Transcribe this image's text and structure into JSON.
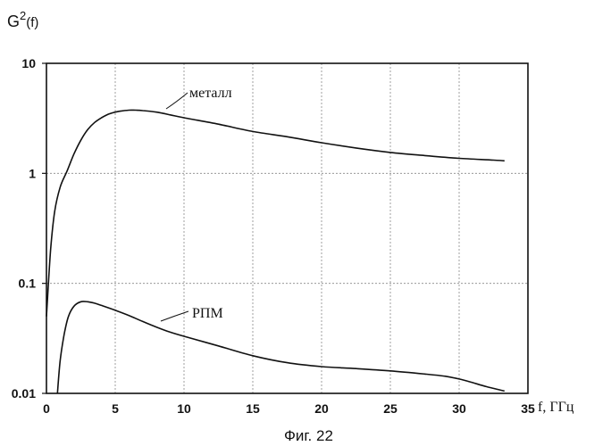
{
  "chart_data": {
    "type": "line",
    "y_scale": "log",
    "ylabel": "G",
    "ylabel_sup": "2",
    "ylabel_arg": "(f)",
    "xlabel": "f, ГГц",
    "caption": "Фиг. 22",
    "xlim": [
      0,
      35
    ],
    "ylim": [
      0.01,
      10
    ],
    "grid": true,
    "x_ticks": [
      "0",
      "5",
      "10",
      "15",
      "20",
      "25",
      "30",
      "35"
    ],
    "y_ticks": [
      "10",
      "1",
      "0.1",
      "0.01"
    ],
    "series": [
      {
        "name": "металл",
        "x": [
          0.0,
          0.3,
          0.6,
          1.0,
          1.5,
          2.0,
          2.5,
          3.0,
          3.5,
          4.0,
          4.5,
          5.0,
          5.5,
          6.0,
          6.5,
          7.0,
          8.0,
          9.0,
          10.0,
          12.5,
          15.0,
          17.5,
          20.0,
          22.5,
          25.0,
          27.5,
          30.0,
          32.5,
          33.3
        ],
        "y": [
          0.05,
          0.2,
          0.45,
          0.75,
          1.05,
          1.5,
          2.0,
          2.5,
          2.9,
          3.2,
          3.45,
          3.6,
          3.7,
          3.75,
          3.75,
          3.72,
          3.6,
          3.4,
          3.2,
          2.8,
          2.4,
          2.15,
          1.9,
          1.7,
          1.55,
          1.45,
          1.37,
          1.32,
          1.3
        ]
      },
      {
        "name": "РПМ",
        "x": [
          0.8,
          1.0,
          1.3,
          1.6,
          2.0,
          2.5,
          3.0,
          3.5,
          4.0,
          5.0,
          6.0,
          7.0,
          8.0,
          9.0,
          10.0,
          12.5,
          15.0,
          17.5,
          20.0,
          22.5,
          25.0,
          27.5,
          29.0,
          30.0,
          31.0,
          32.0,
          33.3
        ],
        "y": [
          0.01,
          0.02,
          0.035,
          0.05,
          0.062,
          0.068,
          0.068,
          0.066,
          0.063,
          0.057,
          0.051,
          0.045,
          0.04,
          0.036,
          0.033,
          0.027,
          0.022,
          0.019,
          0.0175,
          0.0168,
          0.016,
          0.015,
          0.0143,
          0.0135,
          0.0125,
          0.0115,
          0.0105
        ]
      }
    ]
  }
}
